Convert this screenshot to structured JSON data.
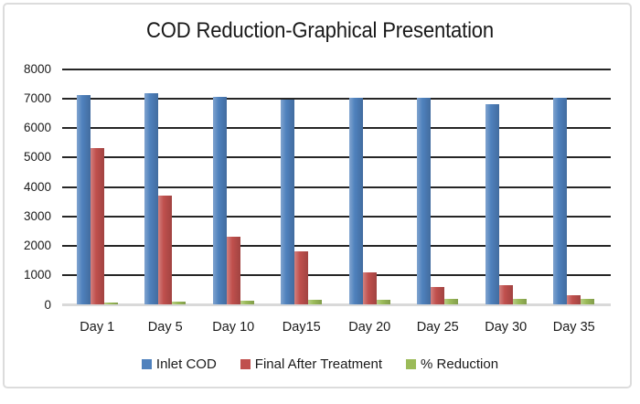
{
  "chart_data": {
    "type": "bar",
    "title": "COD Reduction-Graphical Presentation",
    "xlabel": "",
    "ylabel": "",
    "categories": [
      "Day 1",
      "Day 5",
      "Day 10",
      "Day15",
      "Day 20",
      "Day 25",
      "Day 30",
      "Day 35"
    ],
    "series": [
      {
        "name": "Inlet COD",
        "color": "#4f81bd",
        "axis": "primary",
        "values": [
          7100,
          7150,
          7050,
          6950,
          7000,
          7000,
          6800,
          7000
        ]
      },
      {
        "name": "Final After Treatment",
        "color": "#c0504d",
        "axis": "primary",
        "values": [
          5300,
          3700,
          2300,
          1800,
          1100,
          600,
          650,
          300
        ]
      },
      {
        "name": "% Reduction",
        "color": "#9bbb59",
        "axis": "secondary",
        "values": [
          25,
          48,
          67,
          74,
          84,
          91,
          90,
          96
        ]
      }
    ],
    "ylim": [
      0,
      8000
    ],
    "yticks": [
      0,
      1000,
      2000,
      3000,
      4000,
      5000,
      6000,
      7000,
      8000
    ],
    "secondary_ylim": [
      0,
      4000
    ],
    "secondary_axis_visible": false,
    "grid": true,
    "legend_position": "bottom"
  }
}
